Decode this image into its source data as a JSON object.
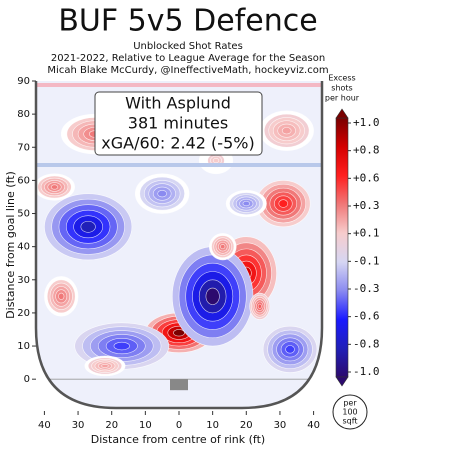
{
  "chart_data": {
    "type": "contour",
    "title": "BUF 5v5 Defence",
    "subtitle": [
      "Unblocked Shot Rates",
      "2021-2022, Relative to League Average for the Season",
      "Micah Blake McCurdy, @IneffectiveMath, hockeyviz.com"
    ],
    "annotation": [
      "With Asplund",
      "381 minutes",
      "xGA/60: 2.42 (-5%)"
    ],
    "x_label": "Distance from centre of rink (ft)",
    "y_label": "Distance from goal line (ft)",
    "xlim": [
      -42.5,
      42.5
    ],
    "ylim": [
      -9,
      90
    ],
    "xticks": [
      {
        "value": -40,
        "label": "40"
      },
      {
        "value": -30,
        "label": "30"
      },
      {
        "value": -20,
        "label": "20"
      },
      {
        "value": -10,
        "label": "10"
      },
      0,
      10,
      20,
      30,
      40
    ],
    "yticks": [
      0,
      10,
      20,
      30,
      40,
      50,
      60,
      70,
      80,
      90
    ],
    "colorbar_title": [
      "Excess",
      "shots",
      "per hour"
    ],
    "colorbar_note": [
      "per",
      "100",
      "sqft"
    ],
    "colorbar_ticks": [
      {
        "value": 1.0,
        "label": "+1.0"
      },
      {
        "value": 0.8,
        "label": "+0.8"
      },
      {
        "value": 0.6,
        "label": "+0.6"
      },
      {
        "value": 0.3,
        "label": "+0.3"
      },
      {
        "value": 0.1,
        "label": "+0.1"
      },
      {
        "value": -0.1,
        "label": "-0.1"
      },
      {
        "value": -0.3,
        "label": "-0.3"
      },
      {
        "value": -0.6,
        "label": "-0.6"
      },
      {
        "value": -0.8,
        "label": "-0.8"
      },
      {
        "value": -1.0,
        "label": "-1.0"
      }
    ],
    "colorbar_colors": [
      "#7a0000",
      "#d40000",
      "#ff1f1f",
      "#f07878",
      "#f7cccc",
      "#d6d6f3",
      "#8a8af0",
      "#1a1aff",
      "#2020b8",
      "#2c0a6e"
    ],
    "blobs": [
      {
        "x": 20,
        "y": 32,
        "rx": 9,
        "ry": 11,
        "value": 0.8
      },
      {
        "x": 0,
        "y": 14,
        "rx": 10,
        "ry": 6,
        "value": 1.0
      },
      {
        "x": 31,
        "y": 53,
        "rx": 8,
        "ry": 7,
        "value": 0.6
      },
      {
        "x": -27,
        "y": 46,
        "rx": 13,
        "ry": 10,
        "value": -0.8
      },
      {
        "x": 10,
        "y": 25,
        "rx": 12,
        "ry": 15,
        "value": -1.0
      },
      {
        "x": -17,
        "y": 10,
        "rx": 14,
        "ry": 7,
        "value": -0.5
      },
      {
        "x": -5,
        "y": 56,
        "rx": 8,
        "ry": 6,
        "value": -0.3
      },
      {
        "x": 13,
        "y": 40,
        "rx": 4,
        "ry": 4,
        "value": 0.3
      },
      {
        "x": -37,
        "y": 58,
        "rx": 6,
        "ry": 4,
        "value": 0.3
      },
      {
        "x": -25,
        "y": 74,
        "rx": 10,
        "ry": 6,
        "value": 0.3
      },
      {
        "x": 32,
        "y": 75,
        "rx": 8,
        "ry": 6,
        "value": 0.2
      },
      {
        "x": 11,
        "y": 66,
        "rx": 5,
        "ry": 4,
        "value": 0.1
      },
      {
        "x": -35,
        "y": 25,
        "rx": 5,
        "ry": 6,
        "value": 0.3
      },
      {
        "x": -22,
        "y": 4,
        "rx": 6,
        "ry": 3,
        "value": 0.2
      },
      {
        "x": 33,
        "y": 9,
        "rx": 8,
        "ry": 7,
        "value": -0.5
      },
      {
        "x": 24,
        "y": 22,
        "rx": 3,
        "ry": 4,
        "value": 0.4
      },
      {
        "x": 20,
        "y": 53,
        "rx": 6,
        "ry": 4,
        "value": -0.3
      }
    ]
  }
}
